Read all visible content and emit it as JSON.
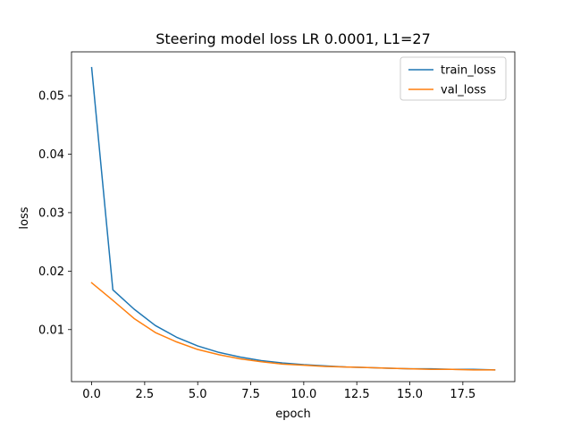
{
  "chart_data": {
    "type": "line",
    "title": "Steering model loss LR 0.0001, L1=27",
    "xlabel": "epoch",
    "ylabel": "loss",
    "xlim": [
      -0.95,
      19.95
    ],
    "ylim": [
      0.0011,
      0.0575
    ],
    "xticks": [
      0.0,
      2.5,
      5.0,
      7.5,
      10.0,
      12.5,
      15.0,
      17.5
    ],
    "xtick_labels": [
      "0.0",
      "2.5",
      "5.0",
      "7.5",
      "10.0",
      "12.5",
      "15.0",
      "17.5"
    ],
    "yticks": [
      0.01,
      0.02,
      0.03,
      0.04,
      0.05
    ],
    "ytick_labels": [
      "0.01",
      "0.02",
      "0.03",
      "0.04",
      "0.05"
    ],
    "grid": false,
    "legend": "top-right",
    "x": [
      0,
      1,
      2,
      3,
      4,
      5,
      6,
      7,
      8,
      9,
      10,
      11,
      12,
      13,
      14,
      15,
      16,
      17,
      18,
      19
    ],
    "series": [
      {
        "name": "train_loss",
        "color": "#1f77b4",
        "values": [
          0.0548,
          0.0168,
          0.0135,
          0.0107,
          0.0087,
          0.0072,
          0.0061,
          0.0053,
          0.0047,
          0.0043,
          0.004,
          0.0038,
          0.0036,
          0.0035,
          0.0034,
          0.0033,
          0.0033,
          0.0032,
          0.0032,
          0.0031
        ]
      },
      {
        "name": "val_loss",
        "color": "#ff7f0e",
        "values": [
          0.018,
          0.015,
          0.0119,
          0.0095,
          0.0079,
          0.0066,
          0.0057,
          0.005,
          0.0045,
          0.0041,
          0.0039,
          0.0037,
          0.0036,
          0.0035,
          0.0034,
          0.0033,
          0.0032,
          0.0032,
          0.0031,
          0.0031
        ]
      }
    ]
  }
}
